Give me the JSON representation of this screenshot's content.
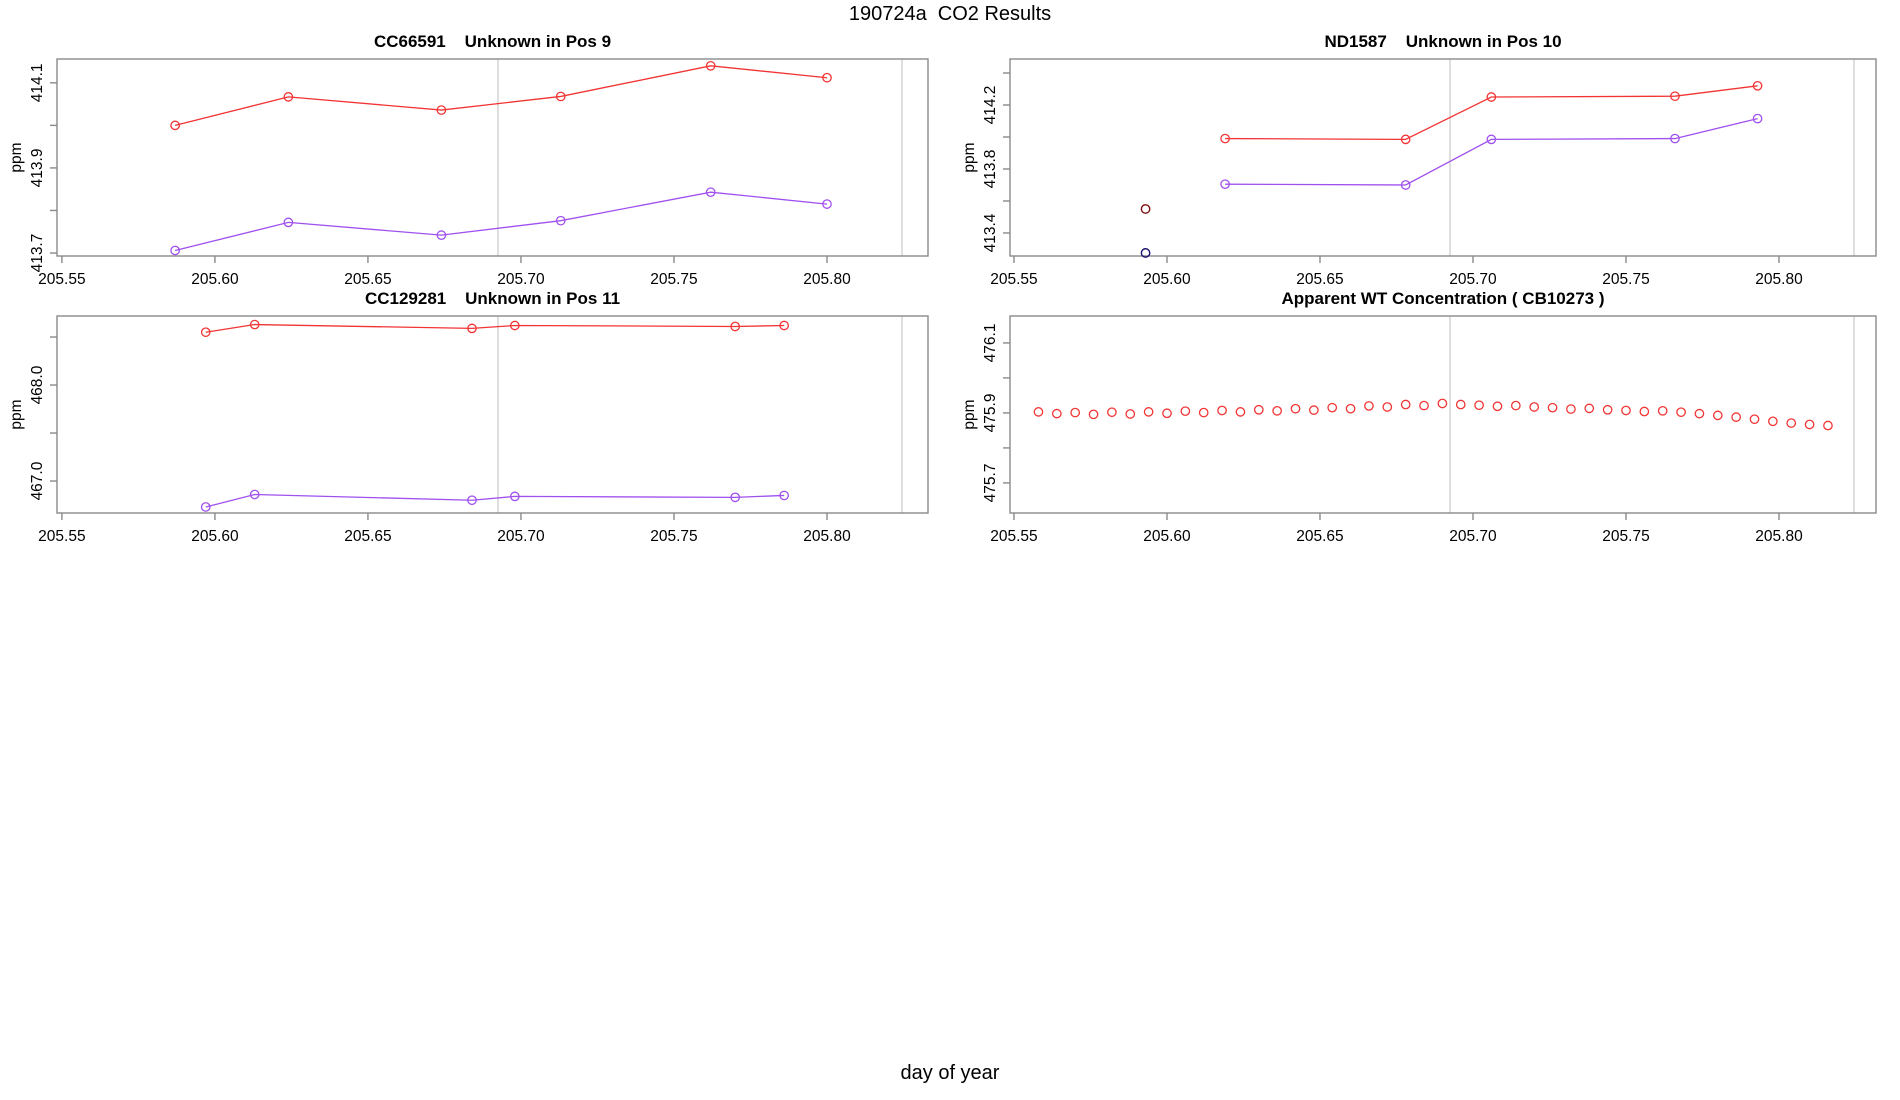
{
  "main_title": "190724a  CO2 Results",
  "xlabel": "day of year",
  "colors": {
    "red": "#f23434",
    "purple": "#a050ee",
    "darkred": "#7e1111",
    "navy": "#1c1470",
    "grid": "#c9c9c9",
    "frame": "#8a8a8a",
    "text": "#000000"
  },
  "chart_data": [
    {
      "type": "line",
      "title": "CC66591    Unknown in Pos 9",
      "ylabel": "ppm",
      "xlim": [
        205.5484,
        205.833
      ],
      "ylim": [
        413.693,
        414.156
      ],
      "x_ticks": [
        205.55,
        205.6,
        205.65,
        205.7,
        205.75,
        205.8
      ],
      "x_tick_labels": [
        "205.55",
        "205.60",
        "205.65",
        "205.70",
        "205.75",
        "205.80"
      ],
      "y_ticks": [
        {
          "v": 414.1,
          "label": "414.1"
        },
        {
          "v": 414.0,
          "label": ""
        },
        {
          "v": 413.9,
          "label": "413.9"
        },
        {
          "v": 413.8,
          "label": ""
        },
        {
          "v": 413.7,
          "label": "413.7"
        }
      ],
      "vlines": [
        205.6925,
        205.8245
      ],
      "series": [
        {
          "name": "measurement-high",
          "color": "red",
          "line": true,
          "x": [
            205.587,
            205.624,
            205.674,
            205.713,
            205.762,
            205.8
          ],
          "y": [
            414.0,
            414.067,
            414.036,
            414.068,
            414.14,
            414.112
          ]
        },
        {
          "name": "measurement-low",
          "color": "purple",
          "line": true,
          "x": [
            205.587,
            205.624,
            205.674,
            205.713,
            205.762,
            205.8
          ],
          "y": [
            413.706,
            413.772,
            413.742,
            413.776,
            413.843,
            413.815
          ]
        }
      ],
      "points": []
    },
    {
      "type": "line",
      "title": "ND1587    Unknown in Pos 10",
      "ylabel": "ppm",
      "xlim": [
        205.5487,
        205.8317
      ],
      "ylim": [
        413.256,
        414.4875
      ],
      "x_ticks": [
        205.55,
        205.6,
        205.65,
        205.7,
        205.75,
        205.8
      ],
      "x_tick_labels": [
        "205.55",
        "205.60",
        "205.65",
        "205.70",
        "205.75",
        "205.80"
      ],
      "y_ticks": [
        {
          "v": 414.4,
          "label": ""
        },
        {
          "v": 414.2,
          "label": "414.2"
        },
        {
          "v": 414.0,
          "label": ""
        },
        {
          "v": 413.8,
          "label": "413.8"
        },
        {
          "v": 413.6,
          "label": ""
        },
        {
          "v": 413.4,
          "label": "413.4"
        }
      ],
      "vlines": [
        205.6925,
        205.8245
      ],
      "series": [
        {
          "name": "measurement-high",
          "color": "red",
          "line": true,
          "x": [
            205.619,
            205.678,
            205.706,
            205.766,
            205.793
          ],
          "y": [
            413.99,
            413.985,
            414.25,
            414.255,
            414.32
          ]
        },
        {
          "name": "measurement-low",
          "color": "purple",
          "line": true,
          "x": [
            205.619,
            205.678,
            205.706,
            205.766,
            205.793
          ],
          "y": [
            413.705,
            413.7,
            413.985,
            413.99,
            414.115
          ]
        }
      ],
      "points": [
        {
          "name": "outlier-dark-red",
          "color": "darkred",
          "x": 205.593,
          "y": 413.55
        },
        {
          "name": "outlier-navy",
          "color": "navy",
          "x": 205.593,
          "y": 413.275
        }
      ]
    },
    {
      "type": "line",
      "title": "CC129281    Unknown in Pos 11",
      "ylabel": "ppm",
      "xlim": [
        205.5484,
        205.833
      ],
      "ylim": [
        466.667,
        468.719
      ],
      "x_ticks": [
        205.55,
        205.6,
        205.65,
        205.7,
        205.75,
        205.8
      ],
      "x_tick_labels": [
        "205.55",
        "205.60",
        "205.65",
        "205.70",
        "205.75",
        "205.80"
      ],
      "y_ticks": [
        {
          "v": 468.5,
          "label": ""
        },
        {
          "v": 468.0,
          "label": "468.0"
        },
        {
          "v": 467.5,
          "label": ""
        },
        {
          "v": 467.0,
          "label": "467.0"
        }
      ],
      "vlines": [
        205.6925,
        205.8245
      ],
      "series": [
        {
          "name": "measurement-high",
          "color": "red",
          "line": true,
          "x": [
            205.597,
            205.613,
            205.684,
            205.698,
            205.77,
            205.786
          ],
          "y": [
            468.55,
            468.63,
            468.59,
            468.62,
            468.61,
            468.62
          ]
        },
        {
          "name": "measurement-low",
          "color": "purple",
          "line": true,
          "x": [
            205.597,
            205.613,
            205.684,
            205.698,
            205.77,
            205.786
          ],
          "y": [
            466.73,
            466.86,
            466.8,
            466.84,
            466.83,
            466.85
          ]
        }
      ],
      "points": []
    },
    {
      "type": "scatter",
      "title": "Apparent WT Concentration ( CB10273 )",
      "ylabel": "ppm",
      "xlim": [
        205.5487,
        205.8317
      ],
      "ylim": [
        475.614,
        476.177
      ],
      "x_ticks": [
        205.55,
        205.6,
        205.65,
        205.7,
        205.75,
        205.8
      ],
      "x_tick_labels": [
        "205.55",
        "205.60",
        "205.65",
        "205.70",
        "205.75",
        "205.80"
      ],
      "y_ticks": [
        {
          "v": 476.1,
          "label": "476.1"
        },
        {
          "v": 476.0,
          "label": ""
        },
        {
          "v": 475.9,
          "label": "475.9"
        },
        {
          "v": 475.8,
          "label": ""
        },
        {
          "v": 475.7,
          "label": "475.7"
        }
      ],
      "vlines": [
        205.6925,
        205.8245
      ],
      "series": [
        {
          "name": "apparent-wt-co2",
          "color": "red",
          "line": false,
          "x": [
            205.558,
            205.564,
            205.57,
            205.576,
            205.582,
            205.588,
            205.594,
            205.6,
            205.606,
            205.612,
            205.618,
            205.624,
            205.63,
            205.636,
            205.642,
            205.648,
            205.654,
            205.66,
            205.666,
            205.672,
            205.678,
            205.684,
            205.69,
            205.696,
            205.702,
            205.708,
            205.714,
            205.72,
            205.726,
            205.732,
            205.738,
            205.744,
            205.75,
            205.756,
            205.762,
            205.768,
            205.774,
            205.78,
            205.786,
            205.792,
            205.798,
            205.804,
            205.81,
            205.816
          ],
          "y": [
            475.903,
            475.898,
            475.901,
            475.896,
            475.902,
            475.897,
            475.903,
            475.899,
            475.905,
            475.901,
            475.907,
            475.903,
            475.909,
            475.906,
            475.912,
            475.908,
            475.915,
            475.912,
            475.92,
            475.917,
            475.924,
            475.921,
            475.927,
            475.924,
            475.922,
            475.919,
            475.921,
            475.917,
            475.915,
            475.911,
            475.913,
            475.909,
            475.907,
            475.904,
            475.906,
            475.902,
            475.898,
            475.893,
            475.888,
            475.882,
            475.876,
            475.871,
            475.867,
            475.864
          ]
        }
      ],
      "points": []
    }
  ]
}
